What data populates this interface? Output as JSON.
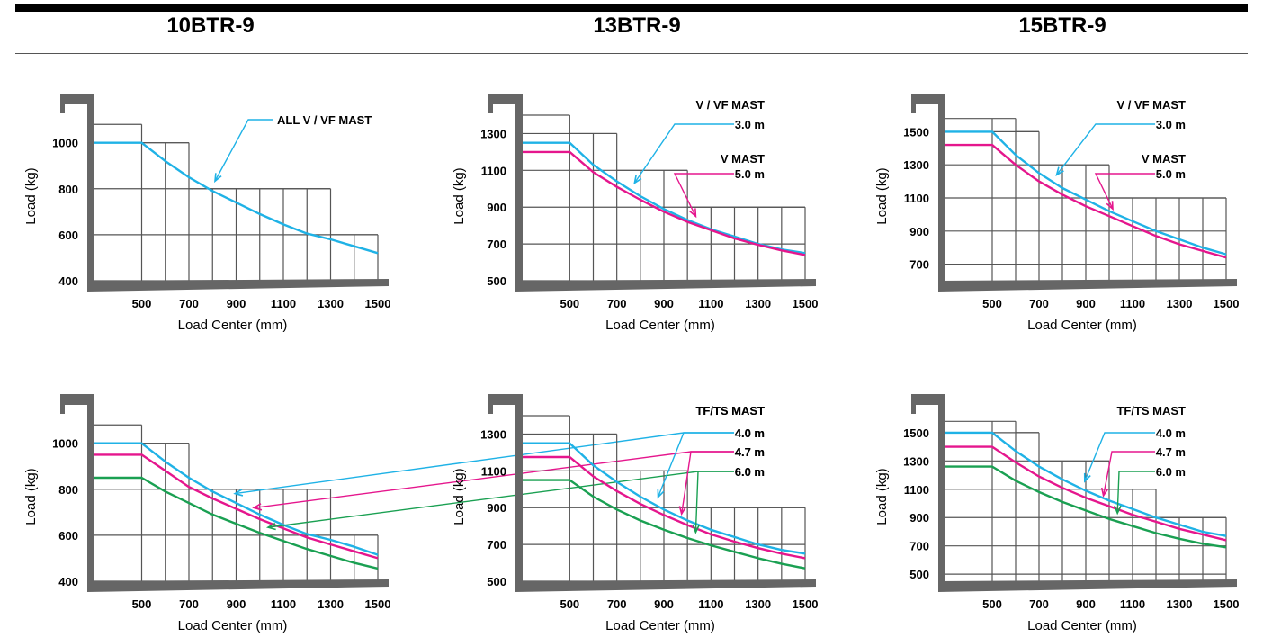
{
  "models": [
    "10BTR-9",
    "13BTR-9",
    "15BTR-9"
  ],
  "colors": {
    "cyan": "#1fb2e6",
    "magenta": "#e5168d",
    "green": "#1aa052",
    "frame": "#666666",
    "grid": "#555555"
  },
  "chart_data": [
    {
      "type": "line",
      "model": "10BTR-9",
      "xlabel": "Load Center (mm)",
      "ylabel": "Load (kg)",
      "x_ticks": [
        500,
        700,
        900,
        1100,
        1300,
        1500
      ],
      "y_ticks": [
        400,
        600,
        800,
        1000
      ],
      "xlim": [
        300,
        1500
      ],
      "ylim": [
        400,
        1120
      ],
      "heading": [
        "ALL V / VF MAST"
      ],
      "step_grid": [
        {
          "from": 500,
          "to": 700,
          "y": 1000
        },
        {
          "from": 700,
          "to": 1300,
          "y": 800
        },
        {
          "from": 1300,
          "to": 1500,
          "y": 600
        }
      ],
      "step_start_y": 1080,
      "series": [
        {
          "name": "ALL V / VF MAST",
          "color": "cyan",
          "x": [
            300,
            500,
            600,
            700,
            800,
            900,
            1000,
            1100,
            1200,
            1300,
            1400,
            1500
          ],
          "values": [
            1000,
            1000,
            920,
            850,
            790,
            740,
            690,
            645,
            605,
            580,
            550,
            520
          ]
        }
      ]
    },
    {
      "type": "line",
      "model": "13BTR-9",
      "xlabel": "Load Center (mm)",
      "ylabel": "Load (kg)",
      "x_ticks": [
        500,
        700,
        900,
        1100,
        1300,
        1500
      ],
      "y_ticks": [
        500,
        700,
        900,
        1100,
        1300
      ],
      "xlim": [
        300,
        1500
      ],
      "ylim": [
        500,
        1400
      ],
      "heading": [
        "V / VF MAST",
        "V  MAST"
      ],
      "step_grid": [
        {
          "from": 500,
          "to": 700,
          "y": 1300
        },
        {
          "from": 700,
          "to": 1000,
          "y": 1100
        },
        {
          "from": 1000,
          "to": 1500,
          "y": 900
        }
      ],
      "step_start_y": 1400,
      "series": [
        {
          "name": "3.0 m",
          "group": "V / VF MAST",
          "color": "cyan",
          "x": [
            300,
            500,
            600,
            700,
            800,
            900,
            1000,
            1100,
            1200,
            1300,
            1400,
            1500
          ],
          "values": [
            1250,
            1250,
            1130,
            1040,
            960,
            890,
            830,
            780,
            740,
            700,
            670,
            650
          ]
        },
        {
          "name": "5.0 m",
          "group": "V  MAST",
          "color": "magenta",
          "x": [
            300,
            500,
            600,
            700,
            800,
            900,
            1000,
            1100,
            1200,
            1300,
            1400,
            1500
          ],
          "values": [
            1200,
            1200,
            1090,
            1010,
            940,
            875,
            820,
            775,
            730,
            695,
            665,
            640
          ]
        }
      ]
    },
    {
      "type": "line",
      "model": "15BTR-9",
      "xlabel": "Load Center (mm)",
      "ylabel": "Load (kg)",
      "x_ticks": [
        500,
        700,
        900,
        1100,
        1300,
        1500
      ],
      "y_ticks": [
        700,
        900,
        1100,
        1300,
        1500
      ],
      "xlim": [
        300,
        1500
      ],
      "ylim": [
        600,
        1600
      ],
      "heading": [
        "V / VF MAST",
        "V  MAST"
      ],
      "step_grid": [
        {
          "from": 500,
          "to": 600,
          "y": 1580
        },
        {
          "from": 600,
          "to": 700,
          "y": 1500
        },
        {
          "from": 700,
          "to": 1000,
          "y": 1300
        },
        {
          "from": 1000,
          "to": 1500,
          "y": 1100
        }
      ],
      "step_start_y": 1580,
      "series": [
        {
          "name": "3.0 m",
          "group": "V / VF MAST",
          "color": "cyan",
          "x": [
            300,
            500,
            600,
            700,
            800,
            900,
            1000,
            1100,
            1200,
            1300,
            1400,
            1500
          ],
          "values": [
            1500,
            1500,
            1360,
            1250,
            1160,
            1090,
            1020,
            960,
            900,
            850,
            800,
            760
          ]
        },
        {
          "name": "5.0 m",
          "group": "V  MAST",
          "color": "magenta",
          "x": [
            300,
            500,
            600,
            700,
            800,
            900,
            1000,
            1100,
            1200,
            1300,
            1400,
            1500
          ],
          "values": [
            1420,
            1420,
            1300,
            1200,
            1120,
            1050,
            990,
            930,
            870,
            820,
            780,
            740
          ]
        }
      ]
    },
    {
      "type": "line",
      "model": "10BTR-9",
      "xlabel": "Load Center (mm)",
      "ylabel": "Load (kg)",
      "x_ticks": [
        500,
        700,
        900,
        1100,
        1300,
        1500
      ],
      "y_ticks": [
        400,
        600,
        800,
        1000
      ],
      "xlim": [
        300,
        1500
      ],
      "ylim": [
        400,
        1120
      ],
      "heading": [
        "TF/TS MAST"
      ],
      "step_grid": [
        {
          "from": 500,
          "to": 700,
          "y": 1000
        },
        {
          "from": 700,
          "to": 1300,
          "y": 800
        },
        {
          "from": 1300,
          "to": 1500,
          "y": 600
        }
      ],
      "step_start_y": 1080,
      "series": [
        {
          "name": "4.0 m",
          "color": "cyan",
          "x": [
            300,
            500,
            600,
            700,
            800,
            900,
            1000,
            1100,
            1200,
            1300,
            1400,
            1500
          ],
          "values": [
            1000,
            1000,
            920,
            850,
            790,
            740,
            690,
            645,
            605,
            580,
            550,
            515
          ]
        },
        {
          "name": "4.7 m",
          "color": "magenta",
          "x": [
            300,
            500,
            600,
            700,
            800,
            900,
            1000,
            1100,
            1200,
            1300,
            1400,
            1500
          ],
          "values": [
            950,
            950,
            880,
            810,
            760,
            715,
            670,
            630,
            590,
            560,
            530,
            500
          ]
        },
        {
          "name": "6.0 m",
          "color": "green",
          "x": [
            300,
            500,
            600,
            700,
            800,
            900,
            1000,
            1100,
            1200,
            1300,
            1400,
            1500
          ],
          "values": [
            850,
            850,
            790,
            740,
            690,
            650,
            610,
            575,
            540,
            510,
            480,
            455
          ]
        }
      ]
    },
    {
      "type": "line",
      "model": "13BTR-9",
      "xlabel": "Load Center (mm)",
      "ylabel": "Load (kg)",
      "x_ticks": [
        500,
        700,
        900,
        1100,
        1300,
        1500
      ],
      "y_ticks": [
        500,
        700,
        900,
        1100,
        1300
      ],
      "xlim": [
        300,
        1500
      ],
      "ylim": [
        500,
        1400
      ],
      "heading": [
        "TF/TS MAST"
      ],
      "step_grid": [
        {
          "from": 500,
          "to": 700,
          "y": 1300
        },
        {
          "from": 700,
          "to": 1000,
          "y": 1100
        },
        {
          "from": 1000,
          "to": 1500,
          "y": 900
        }
      ],
      "step_start_y": 1400,
      "series": [
        {
          "name": "4.0 m",
          "color": "cyan",
          "x": [
            300,
            500,
            600,
            700,
            800,
            900,
            1000,
            1100,
            1200,
            1300,
            1400,
            1500
          ],
          "values": [
            1250,
            1250,
            1130,
            1040,
            960,
            890,
            830,
            780,
            740,
            700,
            670,
            650
          ]
        },
        {
          "name": "4.7 m",
          "color": "magenta",
          "x": [
            300,
            500,
            600,
            700,
            800,
            900,
            1000,
            1100,
            1200,
            1300,
            1400,
            1500
          ],
          "values": [
            1175,
            1175,
            1070,
            990,
            920,
            860,
            805,
            755,
            715,
            680,
            650,
            625
          ]
        },
        {
          "name": "6.0 m",
          "color": "green",
          "x": [
            300,
            500,
            600,
            700,
            800,
            900,
            1000,
            1100,
            1200,
            1300,
            1400,
            1500
          ],
          "values": [
            1050,
            1050,
            960,
            890,
            830,
            780,
            735,
            695,
            660,
            625,
            595,
            570
          ]
        }
      ]
    },
    {
      "type": "line",
      "model": "15BTR-9",
      "xlabel": "Load Center (mm)",
      "ylabel": "Load (kg)",
      "x_ticks": [
        500,
        700,
        900,
        1100,
        1300,
        1500
      ],
      "y_ticks": [
        500,
        700,
        900,
        1100,
        1300,
        1500
      ],
      "xlim": [
        300,
        1500
      ],
      "ylim": [
        450,
        1620
      ],
      "heading": [
        "TF/TS MAST"
      ],
      "step_grid": [
        {
          "from": 500,
          "to": 600,
          "y": 1580
        },
        {
          "from": 600,
          "to": 700,
          "y": 1500
        },
        {
          "from": 700,
          "to": 1000,
          "y": 1300
        },
        {
          "from": 1000,
          "to": 1200,
          "y": 1100
        },
        {
          "from": 1200,
          "to": 1500,
          "y": 900
        }
      ],
      "step_start_y": 1580,
      "series": [
        {
          "name": "4.0 m",
          "color": "cyan",
          "x": [
            300,
            500,
            600,
            700,
            800,
            900,
            1000,
            1100,
            1200,
            1300,
            1400,
            1500
          ],
          "values": [
            1500,
            1500,
            1370,
            1260,
            1170,
            1090,
            1020,
            960,
            900,
            850,
            800,
            770
          ]
        },
        {
          "name": "4.7 m",
          "color": "magenta",
          "x": [
            300,
            500,
            600,
            700,
            800,
            900,
            1000,
            1100,
            1200,
            1300,
            1400,
            1500
          ],
          "values": [
            1400,
            1400,
            1290,
            1190,
            1110,
            1040,
            980,
            920,
            870,
            820,
            780,
            740
          ]
        },
        {
          "name": "6.0 m",
          "color": "green",
          "x": [
            300,
            500,
            600,
            700,
            800,
            900,
            1000,
            1100,
            1200,
            1300,
            1400,
            1500
          ],
          "values": [
            1260,
            1260,
            1160,
            1080,
            1010,
            950,
            890,
            840,
            790,
            750,
            715,
            690
          ]
        }
      ]
    }
  ]
}
